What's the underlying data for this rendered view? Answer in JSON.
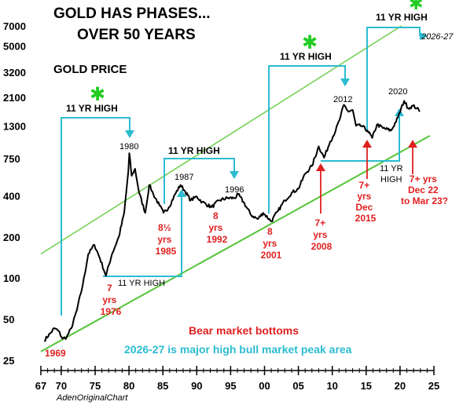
{
  "titles": {
    "line1": "GOLD HAS PHASES...",
    "line2": "OVER 50 YEARS",
    "gold_price": "GOLD PRICE"
  },
  "credit": "AdenOriginalChart",
  "chart_data": {
    "type": "line",
    "title": "GOLD HAS PHASES... OVER 50 YEARS",
    "ylabel": "GOLD PRICE",
    "yscale": "log",
    "ylim": [
      25,
      7000
    ],
    "xlim": [
      67,
      25
    ],
    "y_ticks": [
      "7000",
      "5000",
      "3200",
      "2100",
      "1300",
      "750",
      "400",
      "200",
      "100",
      "50",
      "25"
    ],
    "x_ticks": [
      "67",
      "70",
      "75",
      "80",
      "85",
      "90",
      "95",
      "00",
      "05",
      "10",
      "15",
      "20",
      "25"
    ],
    "series": [
      {
        "values": [
          [
            1967.5,
            35
          ],
          [
            1968.5,
            40
          ],
          [
            1969.0,
            43
          ],
          [
            1969.6,
            41
          ],
          [
            1970.2,
            36
          ],
          [
            1970.8,
            37
          ],
          [
            1971.5,
            43
          ],
          [
            1972.3,
            58
          ],
          [
            1973.2,
            90
          ],
          [
            1974.0,
            150
          ],
          [
            1974.9,
            175
          ],
          [
            1975.7,
            140
          ],
          [
            1976.6,
            104
          ],
          [
            1977.5,
            150
          ],
          [
            1978.5,
            200
          ],
          [
            1979.3,
            300
          ],
          [
            1979.9,
            600
          ],
          [
            1980.05,
            820
          ],
          [
            1980.4,
            560
          ],
          [
            1980.9,
            630
          ],
          [
            1981.5,
            420
          ],
          [
            1982.4,
            300
          ],
          [
            1983.0,
            480
          ],
          [
            1983.6,
            410
          ],
          [
            1984.5,
            340
          ],
          [
            1985.1,
            300
          ],
          [
            1985.9,
            330
          ],
          [
            1986.8,
            410
          ],
          [
            1987.6,
            480
          ],
          [
            1988.3,
            430
          ],
          [
            1989.1,
            370
          ],
          [
            1990.0,
            395
          ],
          [
            1990.8,
            360
          ],
          [
            1992.2,
            330
          ],
          [
            1993.3,
            370
          ],
          [
            1994.5,
            385
          ],
          [
            1995.6,
            385
          ],
          [
            1996.1,
            410
          ],
          [
            1996.9,
            360
          ],
          [
            1998.0,
            290
          ],
          [
            1999.0,
            270
          ],
          [
            1999.8,
            300
          ],
          [
            2001.0,
            260
          ],
          [
            2002.0,
            310
          ],
          [
            2003.0,
            370
          ],
          [
            2004.0,
            420
          ],
          [
            2005.0,
            450
          ],
          [
            2006.0,
            580
          ],
          [
            2007.0,
            660
          ],
          [
            2008.0,
            920
          ],
          [
            2008.8,
            760
          ],
          [
            2009.7,
            1000
          ],
          [
            2010.5,
            1200
          ],
          [
            2011.2,
            1500
          ],
          [
            2011.7,
            1850
          ],
          [
            2012.4,
            1650
          ],
          [
            2013.0,
            1700
          ],
          [
            2013.5,
            1300
          ],
          [
            2014.3,
            1300
          ],
          [
            2015.2,
            1200
          ],
          [
            2015.9,
            1060
          ],
          [
            2016.6,
            1330
          ],
          [
            2017.5,
            1250
          ],
          [
            2018.7,
            1200
          ],
          [
            2019.7,
            1500
          ],
          [
            2020.6,
            1980
          ],
          [
            2021.2,
            1750
          ],
          [
            2021.9,
            1820
          ],
          [
            2022.5,
            1750
          ],
          [
            2022.9,
            1650
          ]
        ]
      }
    ],
    "trend_lines": [
      {
        "color": "#6fcf50",
        "points": [
          [
            1967,
            150
          ],
          [
            2020.2,
            7000
          ]
        ]
      },
      {
        "color": "#55c43a",
        "points": [
          [
            1967,
            29
          ],
          [
            2024.4,
            1100
          ]
        ]
      }
    ],
    "peaks": [
      {
        "label": "1980",
        "x": 1980,
        "y": 820
      },
      {
        "label": "1987",
        "x": 1987.8,
        "y": 490
      },
      {
        "label": "1996",
        "x": 1996,
        "y": 410
      },
      {
        "label": "2012",
        "x": 2012,
        "y": 1850
      },
      {
        "label": "2020",
        "x": 2020.3,
        "y": 2000
      }
    ],
    "phase_annotations": [
      {
        "label": "11 YR HIGH",
        "x_start": 1969.5,
        "x_end": 1980,
        "y": 1650
      },
      {
        "label": "11 YR HIGH",
        "x_start": 1985.5,
        "x_end": 1996.5,
        "y": 700
      },
      {
        "label": "11 YR HIGH",
        "x_start": 2001,
        "x_end": 2012,
        "y": 3700
      },
      {
        "label": "11 YR HIGH",
        "x_start": 2016,
        "x_end": 2026.5,
        "y": 6500
      },
      {
        "label": "11 YR HIGH",
        "x_start": 1976,
        "x_end": 1988,
        "y": 100
      },
      {
        "label": "11 YR HIGH",
        "x_start": 2009,
        "x_end": 2020.5,
        "y": 700
      }
    ],
    "bottoms": [
      {
        "label": "1969"
      },
      {
        "label": "7 yrs 1976"
      },
      {
        "label": "8½ yrs 1985"
      },
      {
        "label": "8 yrs 1992"
      },
      {
        "label": "8 yrs 2001"
      },
      {
        "label": "7+ yrs 2008"
      },
      {
        "label": "7+ yrs Dec 2015"
      },
      {
        "label": "7+ yrs Dec 22 to Mar 23?"
      }
    ],
    "forecast_label": "2026-27",
    "legend": [
      "Bear market bottoms",
      "2026-27 is major high bull market peak area"
    ]
  }
}
